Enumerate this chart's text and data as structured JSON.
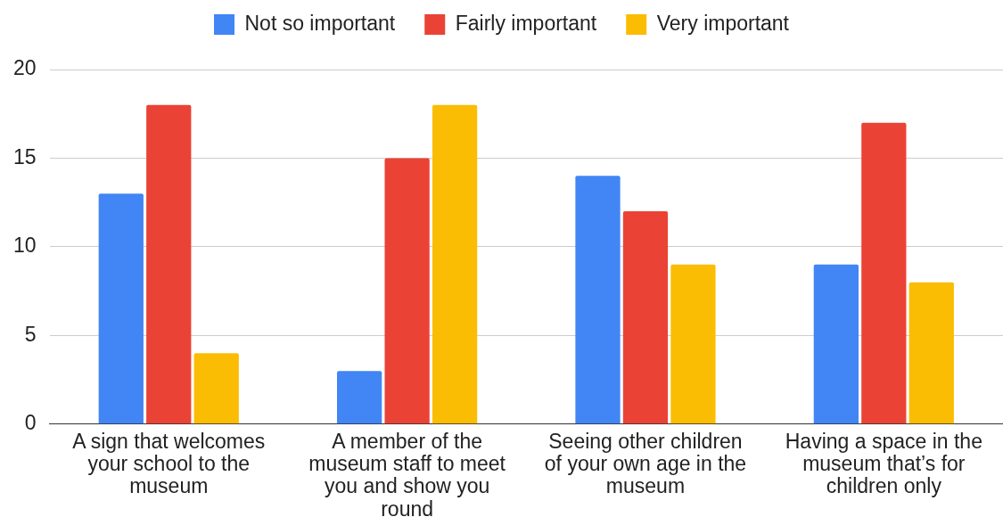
{
  "chart_data": {
    "type": "bar",
    "categories": [
      "A sign that welcomes your school to the museum",
      "A member of the museum staff to meet you and show you round",
      "Seeing other children of your own age in the museum",
      "Having a space in the museum that’s for children only"
    ],
    "series": [
      {
        "name": "Not so important",
        "color": "#4285f4",
        "values": [
          13,
          3,
          14,
          9
        ]
      },
      {
        "name": "Fairly important",
        "color": "#ea4335",
        "values": [
          18,
          15,
          12,
          17
        ]
      },
      {
        "name": "Very important",
        "color": "#fbbc04",
        "values": [
          4,
          18,
          9,
          8
        ]
      }
    ],
    "ylim": [
      0,
      20
    ],
    "yticks": [
      0,
      5,
      10,
      15,
      20
    ],
    "grid": "y",
    "legend": "top"
  }
}
